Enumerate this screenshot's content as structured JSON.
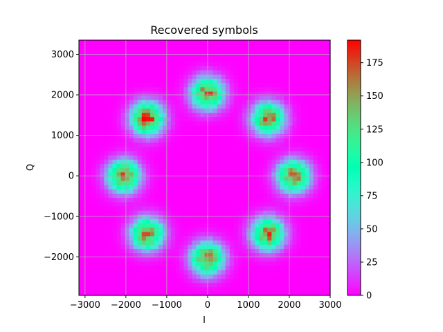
{
  "chart_data": {
    "type": "heatmap",
    "title": "Recovered symbols",
    "xlabel": "I",
    "ylabel": "Q",
    "xlim": [
      -3150,
      3000
    ],
    "ylim": [
      -2950,
      3350
    ],
    "xticks": [
      -3000,
      -2000,
      -1000,
      0,
      1000,
      2000,
      3000
    ],
    "xtick_labels": [
      "−3000",
      "−2000",
      "−1000",
      "0",
      "1000",
      "2000",
      "3000"
    ],
    "yticks": [
      -2000,
      -1000,
      0,
      1000,
      2000,
      3000
    ],
    "ytick_labels": [
      "−2000",
      "−1000",
      "0",
      "1000",
      "2000",
      "3000"
    ],
    "grid": true,
    "bins": 60,
    "colormap": "rainbow",
    "colorbar": {
      "vmin": 0,
      "vmax": 192,
      "ticks": [
        0,
        25,
        50,
        75,
        100,
        125,
        150,
        175
      ],
      "tick_labels": [
        "0",
        "25",
        "50",
        "75",
        "100",
        "125",
        "150",
        "175"
      ]
    },
    "clusters": [
      {
        "angle_deg": 0,
        "center_i": 2100,
        "center_q": 0,
        "peak": 170
      },
      {
        "angle_deg": 45,
        "center_i": 1480,
        "center_q": 1420,
        "peak": 170
      },
      {
        "angle_deg": 90,
        "center_i": 0,
        "center_q": 2050,
        "peak": 170
      },
      {
        "angle_deg": 135,
        "center_i": -1480,
        "center_q": 1420,
        "peak": 190
      },
      {
        "angle_deg": 180,
        "center_i": -2050,
        "center_q": 0,
        "peak": 170
      },
      {
        "angle_deg": 225,
        "center_i": -1480,
        "center_q": -1420,
        "peak": 170
      },
      {
        "angle_deg": 270,
        "center_i": 0,
        "center_q": -2030,
        "peak": 175
      },
      {
        "angle_deg": 315,
        "center_i": 1480,
        "center_q": -1420,
        "peak": 170
      }
    ],
    "cluster_spread": 270
  }
}
